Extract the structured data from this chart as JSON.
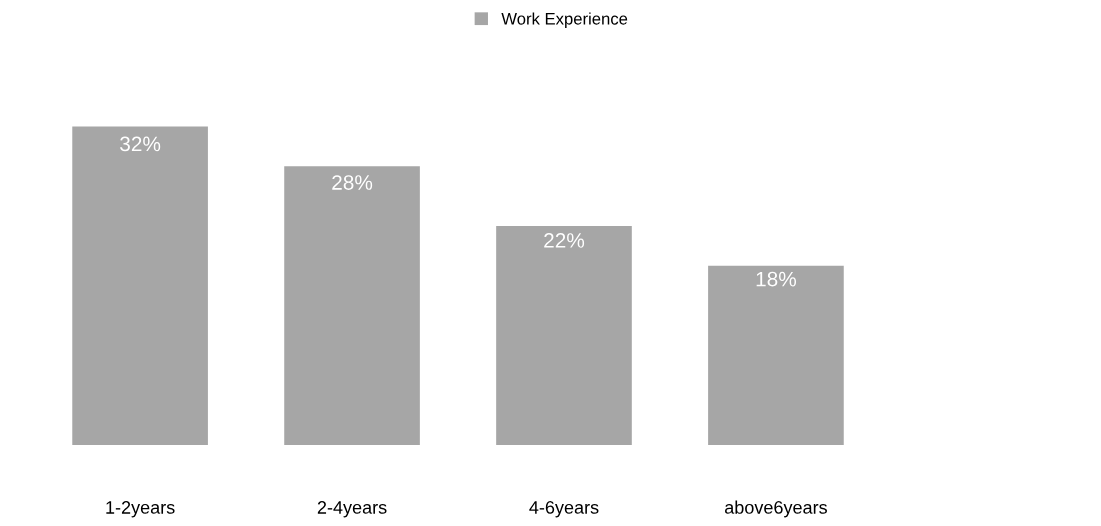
{
  "chart_data": {
    "type": "bar",
    "categories": [
      "1-2years",
      "2-4years",
      "4-6years",
      "above6years"
    ],
    "series": [
      {
        "name": "Work Experience",
        "color": "#a6a6a6",
        "values": [
          32,
          28,
          22,
          18
        ],
        "value_labels": [
          "32%",
          "28%",
          "22%",
          "18%"
        ]
      }
    ],
    "legend": "top",
    "grid": false
  }
}
